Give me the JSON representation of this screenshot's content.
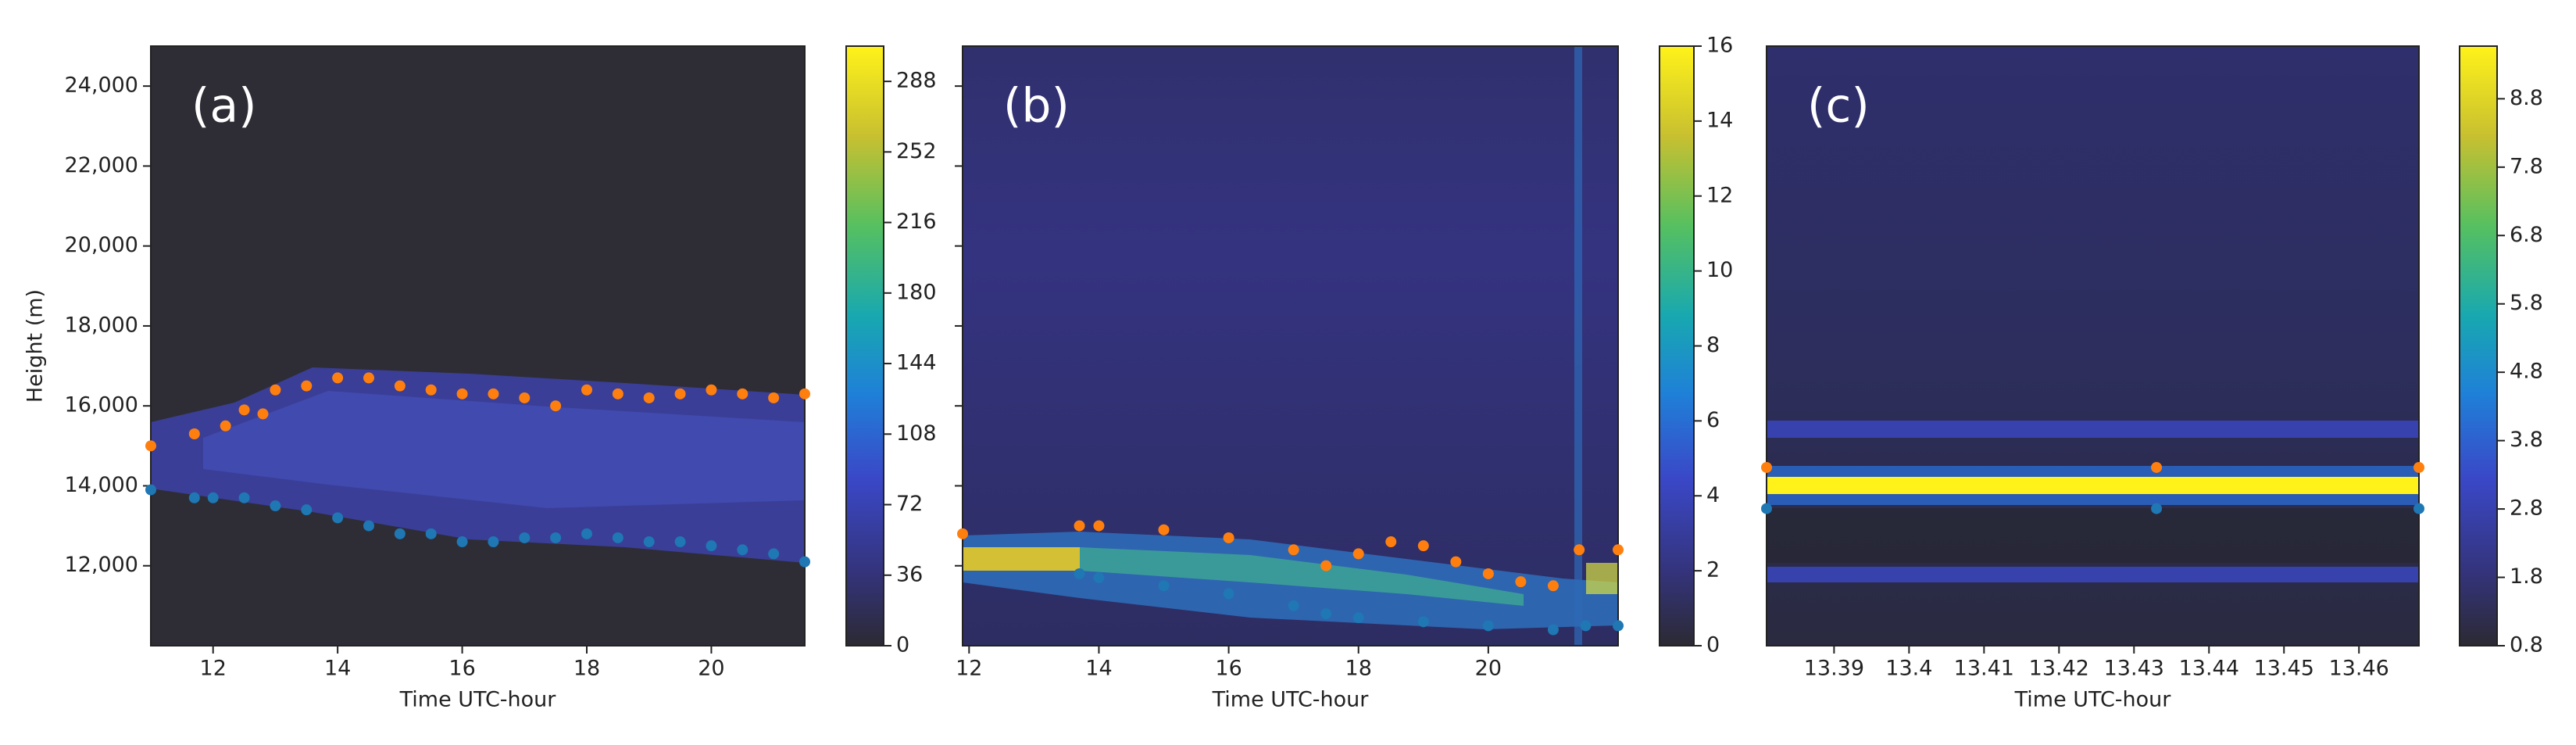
{
  "chart_data": [
    {
      "type": "heatmap",
      "annotation": "(a)",
      "xlabel": "Time UTC-hour",
      "ylabel": "Height (m)",
      "xlim": [
        11,
        21.5
      ],
      "xticks": [
        12,
        14,
        16,
        18,
        20
      ],
      "ylim": [
        10000,
        25000
      ],
      "yticks": [
        {
          "value": 12000,
          "label": "12,000"
        },
        {
          "value": 14000,
          "label": "14,000"
        },
        {
          "value": 16000,
          "label": "16,000"
        },
        {
          "value": 18000,
          "label": "18,000"
        },
        {
          "value": 20000,
          "label": "20,000"
        },
        {
          "value": 22000,
          "label": "22,000"
        },
        {
          "value": 24000,
          "label": "24,000"
        }
      ],
      "clim": [
        0,
        306
      ],
      "cticks": [
        0,
        36,
        72,
        108,
        144,
        180,
        216,
        252,
        288
      ],
      "series": [
        {
          "color": "#ff7f0e",
          "x": [
            11,
            11.7,
            12.2,
            12.5,
            12.8,
            13,
            13.5,
            14,
            14.5,
            15,
            15.5,
            16,
            16.5,
            17,
            17.5,
            18,
            18.5,
            19,
            19.5,
            20,
            20.5,
            21,
            21.5
          ],
          "values": [
            15000,
            15300,
            15500,
            15900,
            15800,
            16400,
            16500,
            16700,
            16700,
            16500,
            16400,
            16300,
            16300,
            16200,
            16000,
            16400,
            16300,
            16200,
            16300,
            16400,
            16300,
            16200,
            16300
          ]
        },
        {
          "color": "#1f77b4",
          "x": [
            11,
            11.7,
            12,
            12.5,
            13,
            13.5,
            14,
            14.5,
            15,
            15.5,
            16,
            16.5,
            17,
            17.5,
            18,
            18.5,
            19,
            19.5,
            20,
            20.5,
            21,
            21.5
          ],
          "values": [
            13900,
            13700,
            13700,
            13700,
            13500,
            13400,
            13200,
            13000,
            12800,
            12800,
            12600,
            12600,
            12700,
            12700,
            12800,
            12700,
            12600,
            12600,
            12500,
            12400,
            12300,
            12100
          ]
        }
      ]
    },
    {
      "type": "heatmap",
      "annotation": "(b)",
      "xlabel": "Time UTC-hour",
      "xlim": [
        11.9,
        22
      ],
      "xticks": [
        12,
        14,
        16,
        18,
        20
      ],
      "ylim": [
        10000,
        25000
      ],
      "clim": [
        0,
        16
      ],
      "cticks": [
        0,
        2,
        4,
        6,
        8,
        10,
        12,
        14,
        16
      ],
      "series": [
        {
          "color": "#ff7f0e",
          "x": [
            11.9,
            13.7,
            14,
            15,
            16,
            17,
            17.5,
            18,
            18.5,
            19,
            19.5,
            20,
            20.5,
            21,
            21.4,
            22
          ],
          "values": [
            12800,
            13000,
            13000,
            12900,
            12700,
            12400,
            12000,
            12300,
            12600,
            12500,
            12100,
            11800,
            11600,
            11500,
            12400,
            12400
          ]
        },
        {
          "color": "#1f77b4",
          "x": [
            13.7,
            14,
            15,
            16,
            17,
            17.5,
            18,
            19,
            20,
            21,
            21.5,
            22
          ],
          "values": [
            11800,
            11700,
            11500,
            11300,
            11000,
            10800,
            10700,
            10600,
            10500,
            10400,
            10500,
            10500
          ]
        }
      ]
    },
    {
      "type": "heatmap",
      "annotation": "(c)",
      "xlabel": "Time UTC-hour",
      "xlim": [
        13.381,
        13.468
      ],
      "xticks": [
        13.39,
        13.4,
        13.41,
        13.42,
        13.43,
        13.44,
        13.45,
        13.46
      ],
      "ylim": [
        10000,
        25000
      ],
      "clim": [
        0.8,
        9.57
      ],
      "cticks": [
        0.8,
        1.8,
        2.8,
        3.8,
        4.8,
        5.8,
        6.8,
        7.8,
        8.8
      ],
      "series": [
        {
          "color": "#ff7f0e",
          "x": [
            13.381,
            13.433,
            13.468
          ],
          "values": [
            14460,
            14460,
            14460
          ]
        },
        {
          "color": "#1f77b4",
          "x": [
            13.381,
            13.433,
            13.468
          ],
          "values": [
            13430,
            13430,
            13430
          ]
        }
      ]
    }
  ]
}
